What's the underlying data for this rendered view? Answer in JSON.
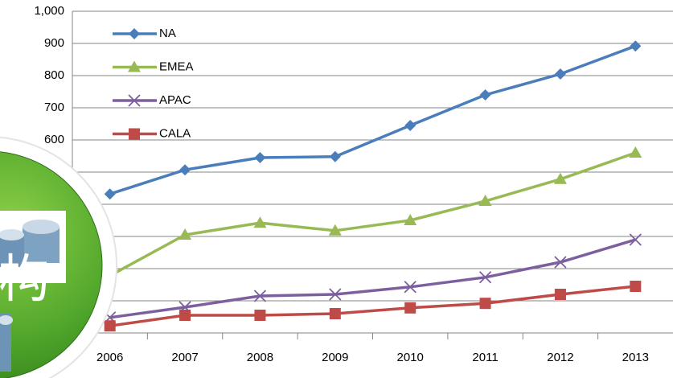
{
  "chart_data": {
    "type": "line",
    "categories": [
      "2006",
      "2007",
      "2008",
      "2009",
      "2010",
      "2011",
      "2012",
      "2013"
    ],
    "series": [
      {
        "name": "NA",
        "color": "#4a7ebb",
        "marker": "diamond",
        "values": [
          432,
          507,
          545,
          548,
          645,
          740,
          805,
          892
        ]
      },
      {
        "name": "EMEA",
        "color": "#98b954",
        "marker": "triangle",
        "values": [
          178,
          305,
          342,
          318,
          350,
          410,
          478,
          560
        ]
      },
      {
        "name": "APAC",
        "color": "#7d5fa0",
        "marker": "x",
        "values": [
          48,
          80,
          115,
          120,
          143,
          173,
          220,
          290
        ]
      },
      {
        "name": "CALA",
        "color": "#be4b48",
        "marker": "square",
        "values": [
          22,
          55,
          55,
          60,
          78,
          92,
          120,
          145
        ]
      }
    ],
    "ylim": [
      0,
      1000
    ],
    "yticks": [
      0,
      100,
      200,
      300,
      400,
      500,
      600,
      700,
      800,
      900,
      {
        "value": 1000,
        "label": "1,000"
      }
    ],
    "grid": true,
    "legend": "top-left"
  },
  "decoration": {
    "text": "构"
  }
}
